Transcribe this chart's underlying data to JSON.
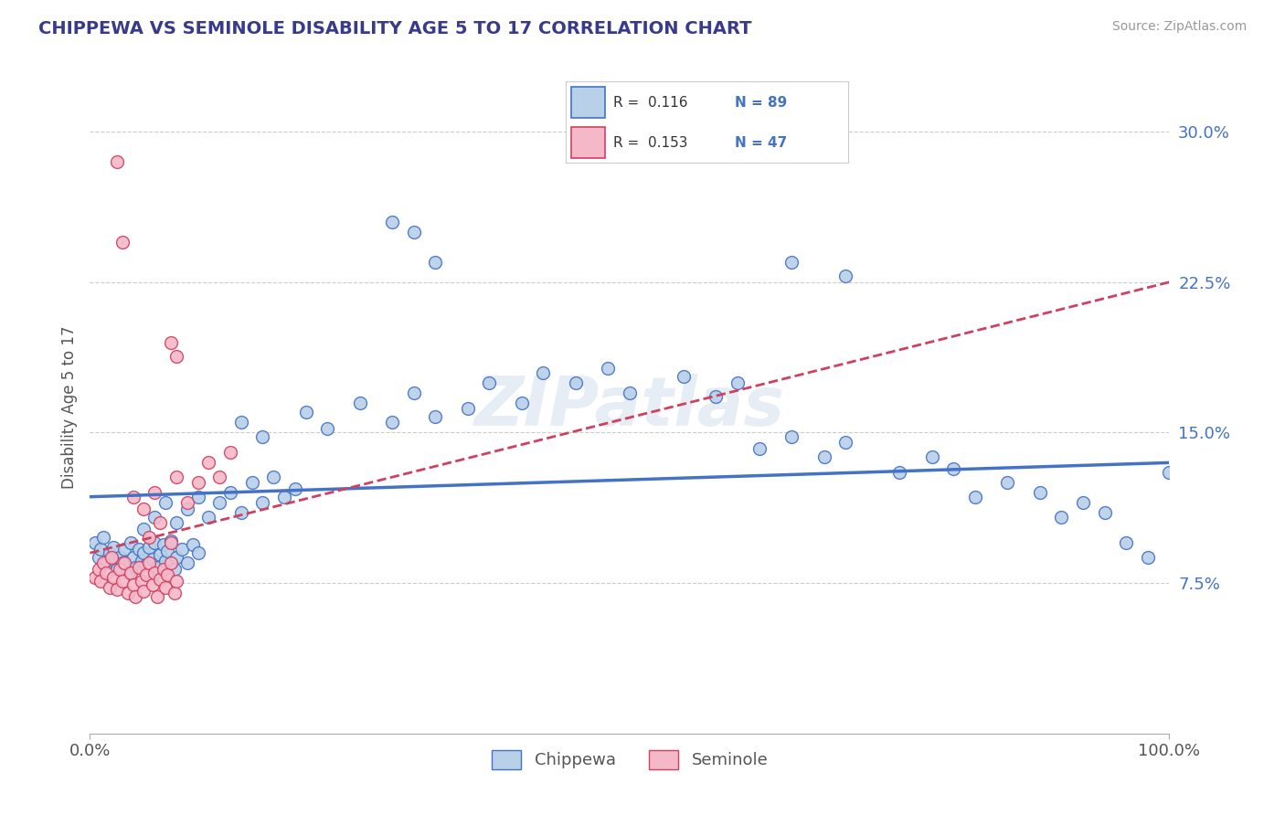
{
  "title": "CHIPPEWA VS SEMINOLE DISABILITY AGE 5 TO 17 CORRELATION CHART",
  "source": "Source: ZipAtlas.com",
  "ylabel": "Disability Age 5 to 17",
  "watermark": "ZIPatlas",
  "chippewa_R": "0.116",
  "chippewa_N": "89",
  "seminole_R": "0.153",
  "seminole_N": "47",
  "xlim": [
    0.0,
    1.0
  ],
  "ylim": [
    0.0,
    0.325
  ],
  "xtick_labels": [
    "0.0%",
    "100.0%"
  ],
  "ytick_labels": [
    "7.5%",
    "15.0%",
    "22.5%",
    "30.0%"
  ],
  "ytick_vals": [
    0.075,
    0.15,
    0.225,
    0.3
  ],
  "chippewa_color": "#b8d0e8",
  "seminole_color": "#f5b8c8",
  "chippewa_line_color": "#4472c4",
  "seminole_line_color": "#d04060",
  "legend_label_1": "Chippewa",
  "legend_label_2": "Seminole",
  "chippewa_points": [
    [
      0.005,
      0.095
    ],
    [
      0.008,
      0.088
    ],
    [
      0.01,
      0.092
    ],
    [
      0.012,
      0.098
    ],
    [
      0.015,
      0.085
    ],
    [
      0.018,
      0.09
    ],
    [
      0.02,
      0.087
    ],
    [
      0.022,
      0.093
    ],
    [
      0.025,
      0.082
    ],
    [
      0.028,
      0.088
    ],
    [
      0.03,
      0.085
    ],
    [
      0.032,
      0.092
    ],
    [
      0.035,
      0.08
    ],
    [
      0.038,
      0.095
    ],
    [
      0.04,
      0.088
    ],
    [
      0.042,
      0.083
    ],
    [
      0.045,
      0.092
    ],
    [
      0.048,
      0.086
    ],
    [
      0.05,
      0.09
    ],
    [
      0.052,
      0.084
    ],
    [
      0.055,
      0.093
    ],
    [
      0.058,
      0.087
    ],
    [
      0.06,
      0.095
    ],
    [
      0.062,
      0.083
    ],
    [
      0.065,
      0.089
    ],
    [
      0.068,
      0.094
    ],
    [
      0.07,
      0.086
    ],
    [
      0.072,
      0.091
    ],
    [
      0.075,
      0.096
    ],
    [
      0.078,
      0.082
    ],
    [
      0.08,
      0.088
    ],
    [
      0.085,
      0.092
    ],
    [
      0.09,
      0.085
    ],
    [
      0.095,
      0.094
    ],
    [
      0.1,
      0.09
    ],
    [
      0.05,
      0.102
    ],
    [
      0.06,
      0.108
    ],
    [
      0.07,
      0.115
    ],
    [
      0.08,
      0.105
    ],
    [
      0.09,
      0.112
    ],
    [
      0.1,
      0.118
    ],
    [
      0.11,
      0.108
    ],
    [
      0.12,
      0.115
    ],
    [
      0.13,
      0.12
    ],
    [
      0.14,
      0.11
    ],
    [
      0.15,
      0.125
    ],
    [
      0.16,
      0.115
    ],
    [
      0.17,
      0.128
    ],
    [
      0.18,
      0.118
    ],
    [
      0.19,
      0.122
    ],
    [
      0.14,
      0.155
    ],
    [
      0.16,
      0.148
    ],
    [
      0.2,
      0.16
    ],
    [
      0.22,
      0.152
    ],
    [
      0.25,
      0.165
    ],
    [
      0.28,
      0.155
    ],
    [
      0.3,
      0.17
    ],
    [
      0.32,
      0.158
    ],
    [
      0.35,
      0.162
    ],
    [
      0.37,
      0.175
    ],
    [
      0.4,
      0.165
    ],
    [
      0.28,
      0.255
    ],
    [
      0.3,
      0.25
    ],
    [
      0.32,
      0.235
    ],
    [
      0.42,
      0.18
    ],
    [
      0.45,
      0.175
    ],
    [
      0.48,
      0.182
    ],
    [
      0.5,
      0.17
    ],
    [
      0.55,
      0.178
    ],
    [
      0.58,
      0.168
    ],
    [
      0.6,
      0.175
    ],
    [
      0.62,
      0.142
    ],
    [
      0.65,
      0.148
    ],
    [
      0.68,
      0.138
    ],
    [
      0.7,
      0.145
    ],
    [
      0.75,
      0.13
    ],
    [
      0.78,
      0.138
    ],
    [
      0.8,
      0.132
    ],
    [
      0.82,
      0.118
    ],
    [
      0.85,
      0.125
    ],
    [
      0.88,
      0.12
    ],
    [
      0.9,
      0.108
    ],
    [
      0.92,
      0.115
    ],
    [
      0.94,
      0.11
    ],
    [
      0.96,
      0.095
    ],
    [
      0.98,
      0.088
    ],
    [
      1.0,
      0.13
    ],
    [
      0.65,
      0.235
    ],
    [
      0.7,
      0.228
    ]
  ],
  "seminole_points": [
    [
      0.005,
      0.078
    ],
    [
      0.008,
      0.082
    ],
    [
      0.01,
      0.076
    ],
    [
      0.012,
      0.085
    ],
    [
      0.015,
      0.08
    ],
    [
      0.018,
      0.073
    ],
    [
      0.02,
      0.088
    ],
    [
      0.022,
      0.078
    ],
    [
      0.025,
      0.072
    ],
    [
      0.028,
      0.082
    ],
    [
      0.03,
      0.076
    ],
    [
      0.032,
      0.085
    ],
    [
      0.035,
      0.07
    ],
    [
      0.038,
      0.08
    ],
    [
      0.04,
      0.074
    ],
    [
      0.042,
      0.068
    ],
    [
      0.045,
      0.083
    ],
    [
      0.048,
      0.076
    ],
    [
      0.05,
      0.071
    ],
    [
      0.052,
      0.079
    ],
    [
      0.055,
      0.085
    ],
    [
      0.058,
      0.074
    ],
    [
      0.06,
      0.08
    ],
    [
      0.062,
      0.068
    ],
    [
      0.065,
      0.077
    ],
    [
      0.068,
      0.082
    ],
    [
      0.07,
      0.073
    ],
    [
      0.072,
      0.079
    ],
    [
      0.075,
      0.085
    ],
    [
      0.078,
      0.07
    ],
    [
      0.08,
      0.076
    ],
    [
      0.055,
      0.098
    ],
    [
      0.065,
      0.105
    ],
    [
      0.075,
      0.095
    ],
    [
      0.04,
      0.118
    ],
    [
      0.05,
      0.112
    ],
    [
      0.06,
      0.12
    ],
    [
      0.08,
      0.128
    ],
    [
      0.09,
      0.115
    ],
    [
      0.1,
      0.125
    ],
    [
      0.11,
      0.135
    ],
    [
      0.12,
      0.128
    ],
    [
      0.13,
      0.14
    ],
    [
      0.025,
      0.285
    ],
    [
      0.03,
      0.245
    ],
    [
      0.075,
      0.195
    ],
    [
      0.08,
      0.188
    ]
  ]
}
